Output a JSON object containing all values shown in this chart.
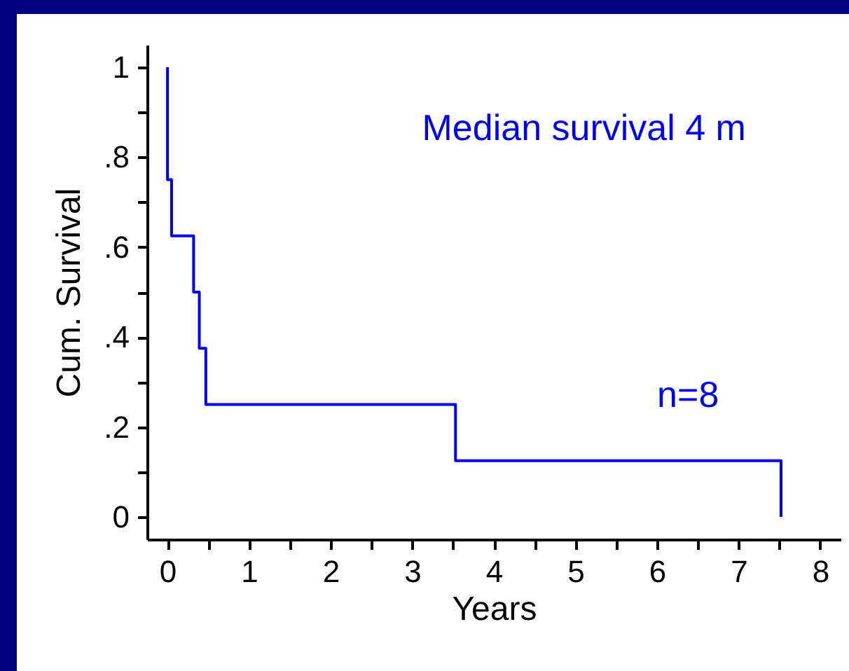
{
  "chart_data": {
    "type": "step",
    "xlabel": "Years",
    "ylabel": "Cum. Survival",
    "annotations": [
      "Median survival 4 m",
      "n=8"
    ],
    "x": [
      0,
      0,
      0.05,
      0.32,
      0.39,
      0.47,
      3.53,
      7.52
    ],
    "series": [
      {
        "color": "#0000ff",
        "values": [
          1,
          0.75,
          0.625,
          0.5,
          0.375,
          0.25,
          0.125,
          0
        ]
      }
    ],
    "xlim": [
      -0.25,
      8.25
    ],
    "xticks": [
      0,
      {
        "value": 0.5,
        "label": null
      },
      1,
      {
        "value": 1.5,
        "label": null
      },
      2,
      {
        "value": 2.5,
        "label": null
      },
      3,
      {
        "value": 3.5,
        "label": null
      },
      4,
      {
        "value": 4.5,
        "label": null
      },
      5,
      {
        "value": 5.5,
        "label": null
      },
      6,
      {
        "value": 6.5,
        "label": null
      },
      7,
      {
        "value": 7.5,
        "label": null
      },
      8
    ],
    "ylim": [
      -0.05,
      1.05
    ],
    "yticks": [
      0,
      {
        "value": 0.1,
        "label": null
      },
      {
        "value": 0.2,
        "label": ".2"
      },
      {
        "value": 0.3,
        "label": null
      },
      {
        "value": 0.4,
        "label": ".4"
      },
      {
        "value": 0.5,
        "label": null
      },
      {
        "value": 0.6,
        "label": ".6"
      },
      {
        "value": 0.7,
        "label": null
      },
      {
        "value": 0.8,
        "label": ".8"
      },
      {
        "value": 0.9,
        "label": null
      },
      1
    ],
    "grid": false
  }
}
